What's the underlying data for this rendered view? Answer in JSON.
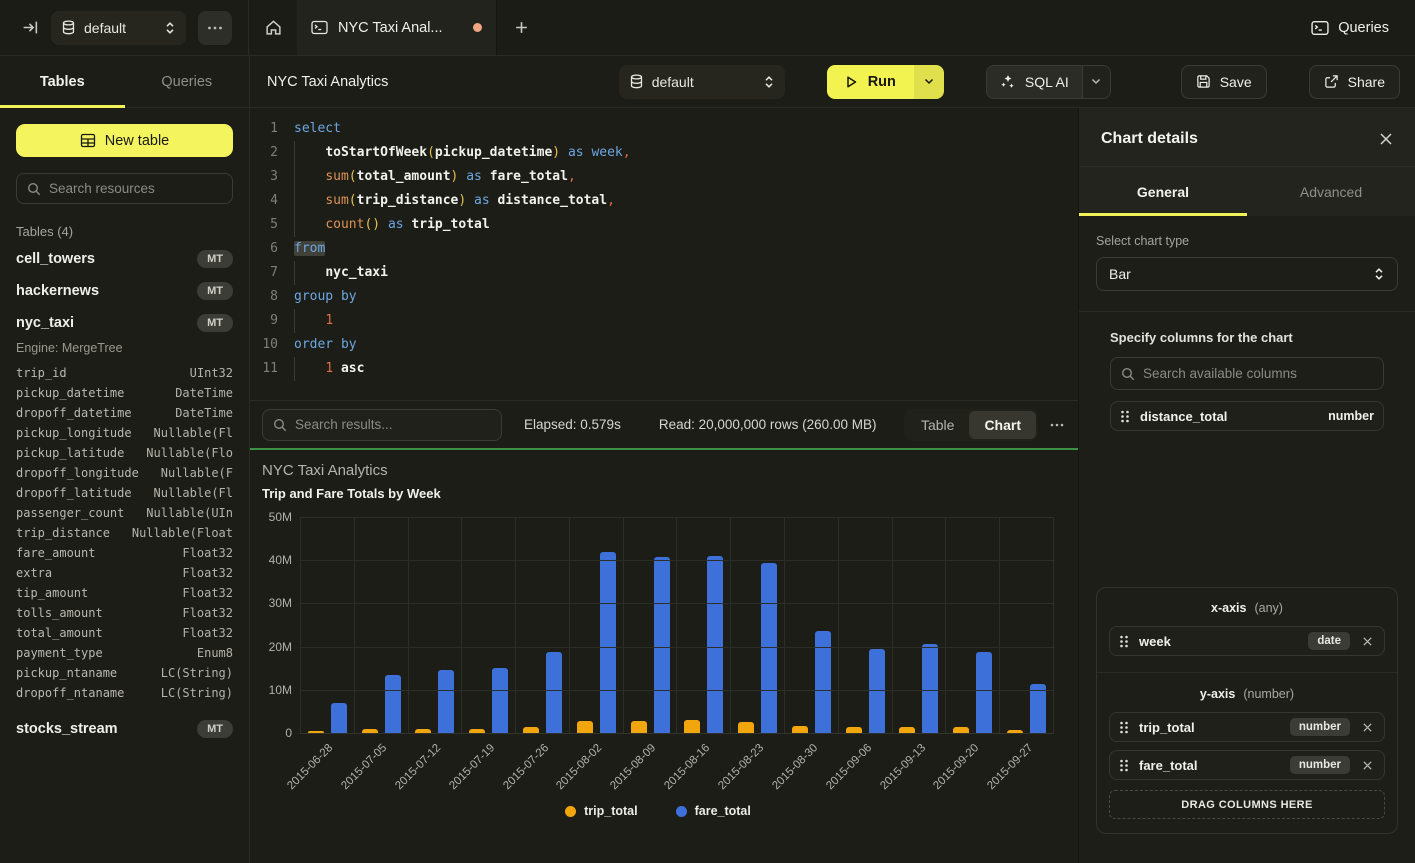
{
  "topbar": {
    "db_label": "default",
    "tab_title": "NYC Taxi Anal...",
    "queries_label": "Queries"
  },
  "sidebar": {
    "tabs": [
      {
        "label": "Tables"
      },
      {
        "label": "Queries"
      }
    ],
    "active_tab": "Tables",
    "new_table_label": "New table",
    "search_placeholder": "Search resources",
    "section_title": "Tables (4)",
    "tables": [
      {
        "name": "cell_towers",
        "badge": "MT"
      },
      {
        "name": "hackernews",
        "badge": "MT"
      },
      {
        "name": "nyc_taxi",
        "badge": "MT",
        "engine": "Engine: MergeTree",
        "columns": [
          {
            "name": "trip_id",
            "type": "UInt32"
          },
          {
            "name": "pickup_datetime",
            "type": "DateTime"
          },
          {
            "name": "dropoff_datetime",
            "type": "DateTime"
          },
          {
            "name": "pickup_longitude",
            "type": "Nullable(Fl"
          },
          {
            "name": "pickup_latitude",
            "type": "Nullable(Flo"
          },
          {
            "name": "dropoff_longitude",
            "type": "Nullable(F"
          },
          {
            "name": "dropoff_latitude",
            "type": "Nullable(Fl"
          },
          {
            "name": "passenger_count",
            "type": "Nullable(UIn"
          },
          {
            "name": "trip_distance",
            "type": "Nullable(Float"
          },
          {
            "name": "fare_amount",
            "type": "Float32"
          },
          {
            "name": "extra",
            "type": "Float32"
          },
          {
            "name": "tip_amount",
            "type": "Float32"
          },
          {
            "name": "tolls_amount",
            "type": "Float32"
          },
          {
            "name": "total_amount",
            "type": "Float32"
          },
          {
            "name": "payment_type",
            "type": "Enum8"
          },
          {
            "name": "pickup_ntaname",
            "type": "LC(String)"
          },
          {
            "name": "dropoff_ntaname",
            "type": "LC(String)"
          }
        ]
      },
      {
        "name": "stocks_stream",
        "badge": "MT"
      }
    ]
  },
  "header": {
    "title": "NYC Taxi Analytics",
    "db_label": "default",
    "run_label": "Run",
    "sql_ai_label": "SQL AI",
    "save_label": "Save",
    "share_label": "Share"
  },
  "editor": {
    "lines": [
      {
        "n": 1,
        "ind": false,
        "seg": [
          {
            "t": "select",
            "c": "kw"
          }
        ]
      },
      {
        "n": 2,
        "ind": true,
        "seg": [
          {
            "t": "    ",
            "c": ""
          },
          {
            "t": "toStartOfWeek",
            "c": "id"
          },
          {
            "t": "(",
            "c": "pr"
          },
          {
            "t": "pickup_datetime",
            "c": "id"
          },
          {
            "t": ")",
            "c": "pr"
          },
          {
            "t": " ",
            "c": ""
          },
          {
            "t": "as",
            "c": "kw"
          },
          {
            "t": " ",
            "c": ""
          },
          {
            "t": "week",
            "c": "kw"
          },
          {
            "t": ",",
            "c": "pc"
          }
        ]
      },
      {
        "n": 3,
        "ind": true,
        "seg": [
          {
            "t": "    ",
            "c": ""
          },
          {
            "t": "sum",
            "c": "fn"
          },
          {
            "t": "(",
            "c": "pr"
          },
          {
            "t": "total_amount",
            "c": "id"
          },
          {
            "t": ")",
            "c": "pr"
          },
          {
            "t": " ",
            "c": ""
          },
          {
            "t": "as",
            "c": "kw"
          },
          {
            "t": " ",
            "c": ""
          },
          {
            "t": "fare_total",
            "c": "id"
          },
          {
            "t": ",",
            "c": "pc"
          }
        ]
      },
      {
        "n": 4,
        "ind": true,
        "seg": [
          {
            "t": "    ",
            "c": ""
          },
          {
            "t": "sum",
            "c": "fn"
          },
          {
            "t": "(",
            "c": "pr"
          },
          {
            "t": "trip_distance",
            "c": "id"
          },
          {
            "t": ")",
            "c": "pr"
          },
          {
            "t": " ",
            "c": ""
          },
          {
            "t": "as",
            "c": "kw"
          },
          {
            "t": " ",
            "c": ""
          },
          {
            "t": "distance_total",
            "c": "id"
          },
          {
            "t": ",",
            "c": "pc"
          }
        ]
      },
      {
        "n": 5,
        "ind": true,
        "seg": [
          {
            "t": "    ",
            "c": ""
          },
          {
            "t": "count",
            "c": "fn"
          },
          {
            "t": "()",
            "c": "pr"
          },
          {
            "t": " ",
            "c": ""
          },
          {
            "t": "as",
            "c": "kw"
          },
          {
            "t": " ",
            "c": ""
          },
          {
            "t": "trip_total",
            "c": "id"
          }
        ]
      },
      {
        "n": 6,
        "ind": false,
        "seg": [
          {
            "t": "from",
            "c": "kw hl"
          }
        ]
      },
      {
        "n": 7,
        "ind": true,
        "seg": [
          {
            "t": "    ",
            "c": ""
          },
          {
            "t": "nyc_taxi",
            "c": "id"
          }
        ]
      },
      {
        "n": 8,
        "ind": false,
        "seg": [
          {
            "t": "group by",
            "c": "kw"
          }
        ]
      },
      {
        "n": 9,
        "ind": true,
        "seg": [
          {
            "t": "    ",
            "c": ""
          },
          {
            "t": "1",
            "c": "nm"
          }
        ]
      },
      {
        "n": 10,
        "ind": false,
        "seg": [
          {
            "t": "order by",
            "c": "kw"
          }
        ]
      },
      {
        "n": 11,
        "ind": true,
        "seg": [
          {
            "t": "    ",
            "c": ""
          },
          {
            "t": "1",
            "c": "nm"
          },
          {
            "t": " ",
            "c": ""
          },
          {
            "t": "asc",
            "c": "id"
          }
        ]
      }
    ]
  },
  "results": {
    "search_placeholder": "Search results...",
    "elapsed": "Elapsed: 0.579s",
    "read": "Read: 20,000,000 rows (260.00 MB)",
    "view_table": "Table",
    "view_chart": "Chart",
    "active_view": "Chart"
  },
  "chart_data": {
    "type": "bar",
    "title": "NYC Taxi Analytics",
    "subtitle": "Trip and Fare Totals by Week",
    "categories": [
      "2015-06-28",
      "2015-07-05",
      "2015-07-12",
      "2015-07-19",
      "2015-07-26",
      "2015-08-02",
      "2015-08-09",
      "2015-08-16",
      "2015-08-23",
      "2015-08-30",
      "2015-09-06",
      "2015-09-13",
      "2015-09-20",
      "2015-09-27"
    ],
    "series": [
      {
        "name": "trip_total",
        "color": "#f2a60e",
        "values": [
          0.5,
          1.0,
          1.0,
          1.0,
          1.3,
          2.8,
          2.7,
          2.9,
          2.6,
          1.7,
          1.5,
          1.5,
          1.5,
          0.8
        ]
      },
      {
        "name": "fare_total",
        "color": "#3d71d9",
        "values": [
          6.9,
          13.5,
          14.5,
          15.0,
          18.7,
          42.0,
          40.7,
          41.0,
          39.3,
          23.5,
          19.4,
          20.7,
          18.7,
          11.4
        ]
      }
    ],
    "unit": "millions",
    "ylim": [
      0,
      50
    ],
    "yticks": [
      "50M",
      "40M",
      "30M",
      "20M",
      "10M",
      "0"
    ],
    "grid": true,
    "legend_position": "bottom"
  },
  "panel": {
    "title": "Chart details",
    "tabs": [
      {
        "label": "General"
      },
      {
        "label": "Advanced"
      }
    ],
    "active_tab": "General",
    "chart_type_label": "Select chart type",
    "chart_type_value": "Bar",
    "columns_label": "Specify columns for the chart",
    "columns_search_placeholder": "Search available columns",
    "available_columns": [
      {
        "name": "distance_total",
        "type": "number"
      }
    ],
    "x_axis": {
      "label": "x-axis",
      "hint": "(any)",
      "items": [
        {
          "name": "week",
          "type": "date"
        }
      ]
    },
    "y_axis": {
      "label": "y-axis",
      "hint": "(number)",
      "items": [
        {
          "name": "trip_total",
          "type": "number"
        },
        {
          "name": "fare_total",
          "type": "number"
        }
      ]
    },
    "drop_label": "DRAG COLUMNS HERE"
  }
}
